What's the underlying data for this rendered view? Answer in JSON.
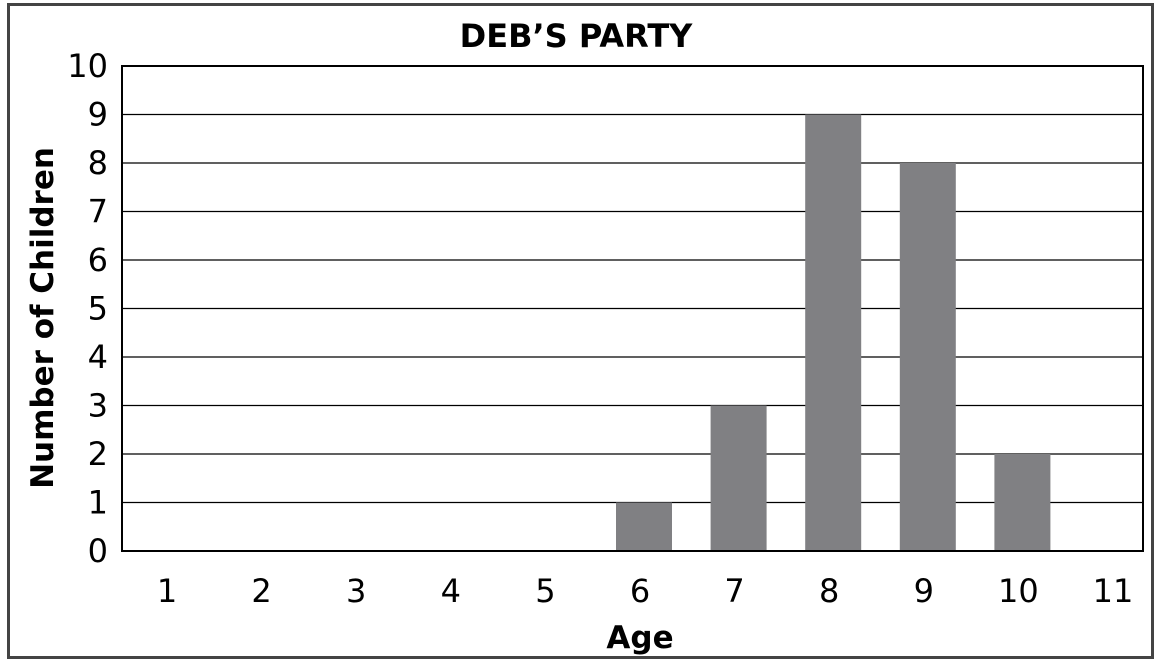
{
  "chart_data": {
    "type": "bar",
    "title": "DEB’S PARTY",
    "xlabel": "Age",
    "ylabel": "Number of Children",
    "categories": [
      "1",
      "2",
      "3",
      "4",
      "5",
      "6",
      "7",
      "8",
      "9",
      "10",
      "11"
    ],
    "values": [
      0,
      0,
      0,
      0,
      0,
      1,
      3,
      9,
      8,
      2,
      0
    ],
    "yticks": [
      "0",
      "1",
      "2",
      "3",
      "4",
      "5",
      "6",
      "7",
      "8",
      "9",
      "10"
    ],
    "ylim": [
      0,
      10
    ],
    "grid": true,
    "legend": "none",
    "colors": {
      "bar": "#808083",
      "grid": "#000000",
      "frame": "#444444"
    }
  }
}
